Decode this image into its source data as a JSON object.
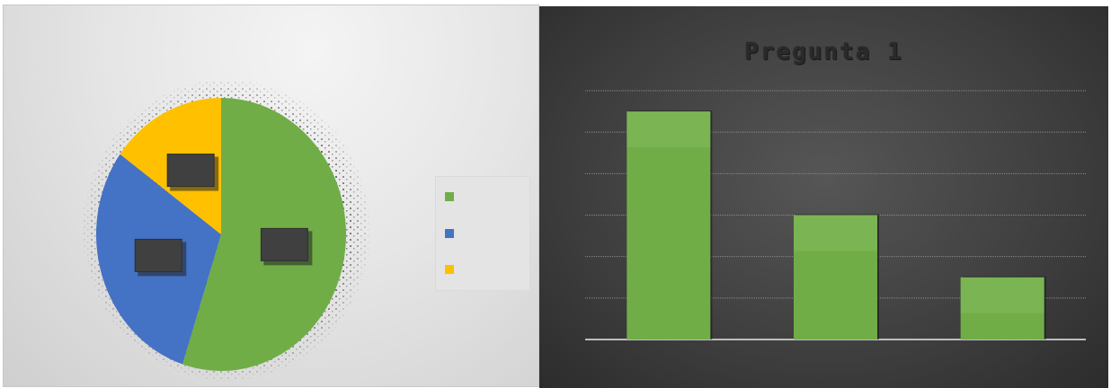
{
  "chart_data": [
    {
      "type": "pie",
      "title": "",
      "categories": [
        "",
        "",
        ""
      ],
      "values": [
        55,
        30,
        15
      ],
      "colors": [
        "#70ad47",
        "#4472c4",
        "#ffc000"
      ],
      "legend": "right",
      "data_labels_visible": false
    },
    {
      "type": "bar",
      "title": "Pregunta 1",
      "categories": [
        "",
        "",
        ""
      ],
      "values": [
        55,
        30,
        15
      ],
      "color": "#70ad47",
      "ylim": [
        0,
        60
      ],
      "grid": true,
      "xlabel": "",
      "ylabel": ""
    }
  ]
}
